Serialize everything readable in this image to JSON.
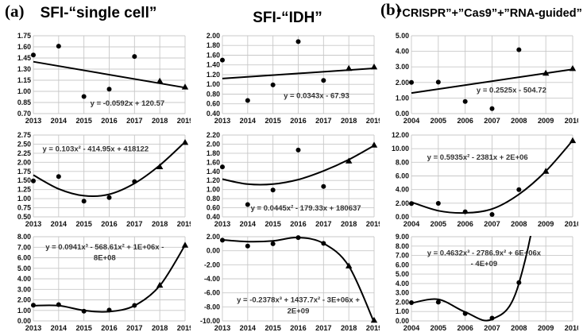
{
  "panels": {
    "a": {
      "label": "(a)",
      "columns": [
        {
          "title": "SFI-“single cell”"
        },
        {
          "title": "SFI-“IDH”"
        }
      ]
    },
    "b": {
      "label": "(b)",
      "columns": [
        {
          "title": "“CRISPR”+”Cas9”+”RNA-guided”"
        }
      ]
    }
  },
  "colors": {
    "background": "#ffffff",
    "grid": "#c8c8c8",
    "line": "#000000",
    "marker": "#000000",
    "tick_text": "#111111",
    "equation_text": "#333333"
  },
  "chart_data": [
    {
      "id": "single-cell-linear",
      "type": "scatter",
      "trend_type": "linear",
      "col": 0,
      "row": 0,
      "column_title": "SFI-“single cell”",
      "x": [
        2013,
        2014,
        2015,
        2016,
        2017,
        2018,
        2019
      ],
      "ylim": [
        0.7,
        1.75
      ],
      "ytick_step": 0.15,
      "grid": true,
      "observed": {
        "marker": "circle",
        "years": [
          2013,
          2014,
          2015,
          2016,
          2017
        ],
        "values": [
          1.49,
          1.61,
          0.93,
          1.03,
          1.47
        ]
      },
      "forecast": {
        "marker": "triangle",
        "years": [
          2018,
          2019
        ],
        "values": [
          1.14,
          1.06
        ]
      },
      "trendline": {
        "style": "straight",
        "values": [
          1.4,
          1.05
        ]
      },
      "equation_lines": [
        "y = -0.0592x + 120.57"
      ],
      "eq_anchor": [
        0.62,
        0.9
      ]
    },
    {
      "id": "single-cell-quadratic",
      "type": "scatter",
      "trend_type": "quadratic",
      "col": 0,
      "row": 1,
      "column_title": "SFI-“single cell”",
      "x": [
        2013,
        2014,
        2015,
        2016,
        2017,
        2018,
        2019
      ],
      "ylim": [
        0.5,
        2.75
      ],
      "ytick_step": 0.25,
      "grid": true,
      "observed": {
        "marker": "circle",
        "years": [
          2013,
          2014,
          2015,
          2016,
          2017
        ],
        "values": [
          1.49,
          1.61,
          0.93,
          1.03,
          1.47
        ]
      },
      "forecast": {
        "marker": "triangle",
        "years": [
          2018,
          2019
        ],
        "values": [
          1.88,
          2.55
        ]
      },
      "trendline": {
        "style": "smooth",
        "values": [
          1.65,
          1.27,
          1.08,
          1.12,
          1.42,
          1.92,
          2.56
        ]
      },
      "equation_lines": [
        "y = 0.103x² - 414.95x + 418122"
      ],
      "eq_anchor": [
        0.41,
        0.2
      ]
    },
    {
      "id": "single-cell-cubic",
      "type": "scatter",
      "trend_type": "cubic",
      "col": 0,
      "row": 2,
      "column_title": "SFI-“single cell”",
      "x": [
        2013,
        2014,
        2015,
        2016,
        2017,
        2018,
        2019
      ],
      "ylim": [
        0.0,
        8.0
      ],
      "ytick_step": 1.0,
      "grid": true,
      "observed": {
        "marker": "circle",
        "years": [
          2013,
          2014,
          2015,
          2016,
          2017
        ],
        "values": [
          1.49,
          1.55,
          0.93,
          1.03,
          1.47
        ]
      },
      "forecast": {
        "marker": "triangle",
        "years": [
          2018,
          2019
        ],
        "values": [
          3.4,
          7.2
        ]
      },
      "trendline": {
        "style": "smooth",
        "values": [
          1.45,
          1.45,
          1.0,
          0.88,
          1.45,
          3.35,
          7.2
        ]
      },
      "equation_lines": [
        "y = 0.0941x³ - 568.61x² + 1E+06x -",
        "8E+08"
      ],
      "eq_anchor": [
        0.47,
        0.15
      ]
    },
    {
      "id": "idh-linear",
      "type": "scatter",
      "trend_type": "linear",
      "col": 1,
      "row": 0,
      "column_title": "SFI-“IDH”",
      "x": [
        2013,
        2014,
        2015,
        2016,
        2017,
        2018,
        2019
      ],
      "ylim": [
        0.4,
        2.0
      ],
      "ytick_step": 0.2,
      "grid": true,
      "observed": {
        "marker": "circle",
        "years": [
          2013,
          2014,
          2015,
          2016,
          2017
        ],
        "values": [
          1.5,
          0.67,
          0.99,
          1.88,
          1.08
        ]
      },
      "forecast": {
        "marker": "triangle",
        "years": [
          2018,
          2019
        ],
        "values": [
          1.33,
          1.36
        ]
      },
      "trendline": {
        "style": "straight",
        "values": [
          1.12,
          1.33
        ]
      },
      "equation_lines": [
        "y = 0.0343x - 67.93"
      ],
      "eq_anchor": [
        0.62,
        0.8
      ]
    },
    {
      "id": "idh-quadratic",
      "type": "scatter",
      "trend_type": "quadratic",
      "col": 1,
      "row": 1,
      "column_title": "SFI-“IDH”",
      "x": [
        2013,
        2014,
        2015,
        2016,
        2017,
        2018,
        2019
      ],
      "ylim": [
        0.4,
        2.2
      ],
      "ytick_step": 0.2,
      "grid": true,
      "observed": {
        "marker": "circle",
        "years": [
          2013,
          2014,
          2015,
          2016,
          2017
        ],
        "values": [
          1.5,
          0.67,
          0.99,
          1.87,
          1.07
        ]
      },
      "forecast": {
        "marker": "triangle",
        "years": [
          2018,
          2019
        ],
        "values": [
          1.63,
          1.98
        ]
      },
      "trendline": {
        "style": "smooth",
        "values": [
          1.23,
          1.12,
          1.12,
          1.22,
          1.41,
          1.66,
          1.97
        ]
      },
      "equation_lines": [
        "y = 0.0445x² - 179.33x + 180637"
      ],
      "eq_anchor": [
        0.55,
        0.92
      ]
    },
    {
      "id": "idh-cubic",
      "type": "scatter",
      "trend_type": "cubic",
      "col": 1,
      "row": 2,
      "column_title": "SFI-“IDH”",
      "x": [
        2013,
        2014,
        2015,
        2016,
        2017,
        2018,
        2019
      ],
      "ylim": [
        -10.0,
        2.0
      ],
      "ytick_step": 2.0,
      "grid": true,
      "observed": {
        "marker": "circle",
        "years": [
          2013,
          2014,
          2015,
          2016,
          2017
        ],
        "values": [
          1.5,
          0.67,
          0.99,
          1.88,
          1.05
        ]
      },
      "forecast": {
        "marker": "triangle",
        "years": [
          2018,
          2019
        ],
        "values": [
          -2.15,
          -9.9
        ]
      },
      "trendline": {
        "style": "smooth",
        "values": [
          1.55,
          1.3,
          1.4,
          1.88,
          1.05,
          -2.2,
          -10.2
        ]
      },
      "equation_lines": [
        "y = -0.2378x³ + 1437.7x² - 3E+06x +",
        "2E+09"
      ],
      "eq_anchor": [
        0.5,
        0.78
      ]
    },
    {
      "id": "crispr-linear",
      "type": "scatter",
      "trend_type": "linear",
      "col": 2,
      "row": 0,
      "column_title": "“CRISPR”+”Cas9”+”RNA-guided”",
      "x": [
        2004,
        2005,
        2006,
        2007,
        2008,
        2009,
        2010
      ],
      "ylim": [
        0.0,
        5.0
      ],
      "ytick_step": 1.0,
      "grid": true,
      "observed": {
        "marker": "circle",
        "years": [
          2004,
          2005,
          2006,
          2007,
          2008
        ],
        "values": [
          2.0,
          2.02,
          0.78,
          0.32,
          4.1
        ]
      },
      "forecast": {
        "marker": "triangle",
        "years": [
          2009,
          2010
        ],
        "values": [
          2.6,
          2.9
        ]
      },
      "trendline": {
        "style": "straight",
        "values": [
          1.32,
          2.84
        ]
      },
      "equation_lines": [
        "y = 0.2525x - 504.72"
      ],
      "eq_anchor": [
        0.62,
        0.73
      ]
    },
    {
      "id": "crispr-quadratic",
      "type": "scatter",
      "trend_type": "quadratic",
      "col": 2,
      "row": 1,
      "column_title": "“CRISPR”+”Cas9”+”RNA-guided”",
      "x": [
        2004,
        2005,
        2006,
        2007,
        2008,
        2009,
        2010
      ],
      "ylim": [
        0.0,
        12.0
      ],
      "ytick_step": 2.0,
      "grid": true,
      "observed": {
        "marker": "circle",
        "years": [
          2004,
          2005,
          2006,
          2007,
          2008
        ],
        "values": [
          1.95,
          1.98,
          0.75,
          0.35,
          4.0
        ]
      },
      "forecast": {
        "marker": "triangle",
        "years": [
          2009,
          2010
        ],
        "values": [
          6.7,
          11.2
        ]
      },
      "trendline": {
        "style": "smooth",
        "values": [
          2.15,
          0.9,
          0.58,
          1.15,
          3.3,
          6.7,
          11.2
        ]
      },
      "equation_lines": [
        "y = 0.5935x² - 2381x + 2E+06"
      ],
      "eq_anchor": [
        0.41,
        0.3
      ]
    },
    {
      "id": "crispr-cubic",
      "type": "scatter",
      "trend_type": "cubic",
      "col": 2,
      "row": 2,
      "column_title": "“CRISPR”+”Cas9”+”RNA-guided”",
      "x": [
        2004,
        2005,
        2006,
        2007,
        2008,
        2009,
        2010
      ],
      "ylim": [
        0.0,
        9.0
      ],
      "ytick_step": 1.0,
      "grid": true,
      "observed": {
        "marker": "circle",
        "years": [
          2004,
          2005,
          2006,
          2007,
          2008
        ],
        "values": [
          1.95,
          2.0,
          0.78,
          0.3,
          4.1
        ]
      },
      "forecast": {
        "marker": "triangle",
        "years": [],
        "values": []
      },
      "trendline": {
        "style": "smooth",
        "values": [
          1.9,
          2.3,
          0.95,
          0.18,
          4.0,
          20.0,
          55.0
        ]
      },
      "equation_lines": [
        "y = 0.4632x³ - 2786.9x² + 6E+06x",
        "- 4E+09"
      ],
      "eq_anchor": [
        0.45,
        0.22
      ]
    }
  ]
}
